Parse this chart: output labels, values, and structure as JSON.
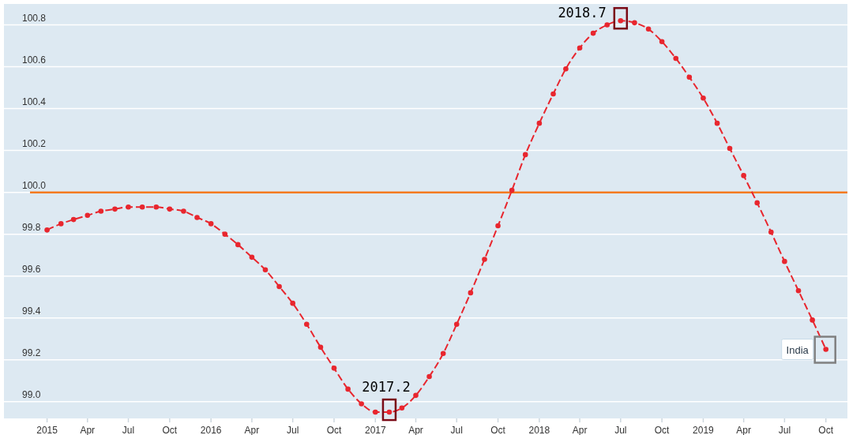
{
  "chart_data": {
    "type": "line",
    "x": [
      "2015-01",
      "2015-02",
      "2015-03",
      "2015-04",
      "2015-05",
      "2015-06",
      "2015-07",
      "2015-08",
      "2015-09",
      "2015-10",
      "2015-11",
      "2015-12",
      "2016-01",
      "2016-02",
      "2016-03",
      "2016-04",
      "2016-05",
      "2016-06",
      "2016-07",
      "2016-08",
      "2016-09",
      "2016-10",
      "2016-11",
      "2016-12",
      "2017-01",
      "2017-02",
      "2017-03",
      "2017-04",
      "2017-05",
      "2017-06",
      "2017-07",
      "2017-08",
      "2017-09",
      "2017-10",
      "2017-11",
      "2017-12",
      "2018-01",
      "2018-02",
      "2018-03",
      "2018-04",
      "2018-05",
      "2018-06",
      "2018-07",
      "2018-08",
      "2018-09",
      "2018-10",
      "2018-11",
      "2018-12",
      "2019-01",
      "2019-02",
      "2019-03",
      "2019-04",
      "2019-05",
      "2019-06",
      "2019-07",
      "2019-08",
      "2019-09",
      "2019-10"
    ],
    "series": [
      {
        "name": "India",
        "color": "#e8262e",
        "values": [
          99.82,
          99.85,
          99.87,
          99.89,
          99.91,
          99.92,
          99.93,
          99.93,
          99.93,
          99.92,
          99.91,
          99.88,
          99.85,
          99.8,
          99.75,
          99.69,
          99.63,
          99.55,
          99.47,
          99.37,
          99.26,
          99.16,
          99.06,
          98.99,
          98.95,
          98.95,
          98.97,
          99.03,
          99.12,
          99.23,
          99.37,
          99.52,
          99.68,
          99.84,
          100.01,
          100.18,
          100.33,
          100.47,
          100.59,
          100.69,
          100.76,
          100.8,
          100.82,
          100.81,
          100.78,
          100.72,
          100.64,
          100.55,
          100.45,
          100.33,
          100.21,
          100.08,
          99.95,
          99.81,
          99.67,
          99.53,
          99.39,
          99.25
        ]
      }
    ],
    "xlim": [
      "2014-09-27",
      "2019-11-18"
    ],
    "xticks": [
      {
        "value": "2015-01",
        "label": "2015"
      },
      {
        "value": "2015-04",
        "label": "Apr"
      },
      {
        "value": "2015-07",
        "label": "Jul"
      },
      {
        "value": "2015-10",
        "label": "Oct"
      },
      {
        "value": "2016-01",
        "label": "2016"
      },
      {
        "value": "2016-04",
        "label": "Apr"
      },
      {
        "value": "2016-07",
        "label": "Jul"
      },
      {
        "value": "2016-10",
        "label": "Oct"
      },
      {
        "value": "2017-01",
        "label": "2017"
      },
      {
        "value": "2017-04",
        "label": "Apr"
      },
      {
        "value": "2017-07",
        "label": "Jul"
      },
      {
        "value": "2017-10",
        "label": "Oct"
      },
      {
        "value": "2018-01",
        "label": "2018"
      },
      {
        "value": "2018-04",
        "label": "Apr"
      },
      {
        "value": "2018-07",
        "label": "Jul"
      },
      {
        "value": "2018-10",
        "label": "Oct"
      },
      {
        "value": "2019-01",
        "label": "2019"
      },
      {
        "value": "2019-04",
        "label": "Apr"
      },
      {
        "value": "2019-07",
        "label": "Jul"
      },
      {
        "value": "2019-10",
        "label": "Oct"
      }
    ],
    "ylim": [
      98.92,
      100.9
    ],
    "yticks": [
      {
        "value": 99.0,
        "label": "99.0"
      },
      {
        "value": 99.2,
        "label": "99.2"
      },
      {
        "value": 99.4,
        "label": "99.4"
      },
      {
        "value": 99.6,
        "label": "99.6"
      },
      {
        "value": 99.8,
        "label": "99.8"
      },
      {
        "value": 100.0,
        "label": "100.0"
      },
      {
        "value": 100.2,
        "label": "100.2"
      },
      {
        "value": 100.4,
        "label": "100.4"
      },
      {
        "value": 100.6,
        "label": "100.6"
      },
      {
        "value": 100.8,
        "label": "100.8"
      }
    ],
    "grid": "y",
    "marker": "circle",
    "line_style": "dashed",
    "ref_lines": [
      {
        "axis": "y",
        "value": 100.0,
        "color": "#f47b20"
      }
    ],
    "annotations": [
      {
        "text": "2017.2",
        "x": "2017-02",
        "y": 98.95
      },
      {
        "text": "2018.7",
        "x": "2018-07",
        "y": 100.82
      }
    ]
  }
}
